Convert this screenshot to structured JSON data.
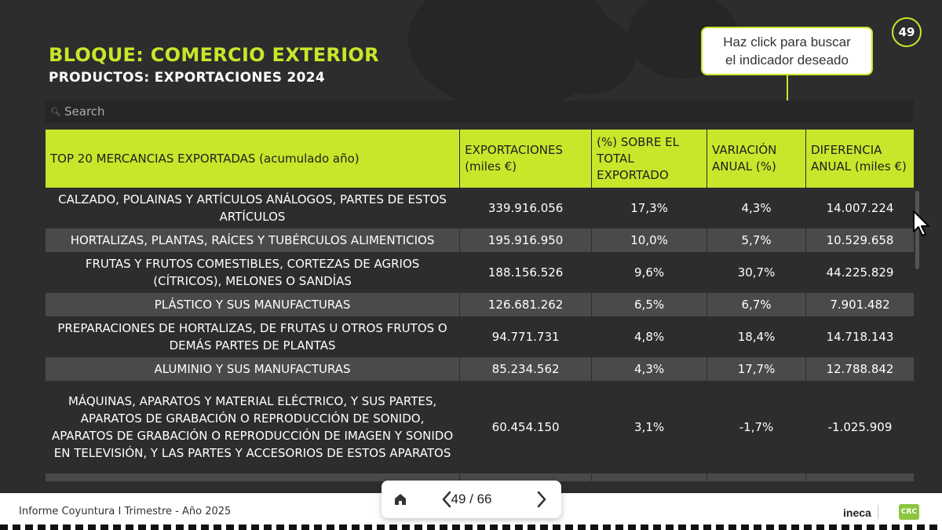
{
  "page_number": "49",
  "title": "BLOQUE: COMERCIO EXTERIOR",
  "subtitle": "PRODUCTOS: EXPORTACIONES 2024",
  "tooltip": {
    "line1": "Haz click para buscar",
    "line2": "el indicador deseado"
  },
  "search": {
    "placeholder": "Search",
    "icon": "search-icon"
  },
  "colors": {
    "accent": "#c9e62a",
    "background": "#2d2d2d",
    "row_alt": "#4a4a4a"
  },
  "table": {
    "headers": [
      "TOP 20 MERCANCIAS EXPORTADAS (acumulado año)",
      "EXPORTACIONES (miles €)",
      "(%) SOBRE EL TOTAL EXPORTADO",
      "VARIACIÓN ANUAL (%)",
      "DIFERENCIA ANUAL (miles €)"
    ],
    "rows": [
      {
        "name": "CALZADO, POLAINAS Y ARTÍCULOS ANÁLOGOS, PARTES DE ESTOS ARTÍCULOS",
        "exports": "339.916.056",
        "share": "17,3%",
        "variation": "4,3%",
        "difference": "14.007.224"
      },
      {
        "name": "HORTALIZAS, PLANTAS, RAÍCES Y TUBÉRCULOS ALIMENTICIOS",
        "exports": "195.916.950",
        "share": "10,0%",
        "variation": "5,7%",
        "difference": "10.529.658"
      },
      {
        "name": "FRUTAS Y FRUTOS COMESTIBLES, CORTEZAS DE AGRIOS (CÍTRICOS), MELONES O SANDÍAS",
        "exports": "188.156.526",
        "share": "9,6%",
        "variation": "30,7%",
        "difference": "44.225.829"
      },
      {
        "name": "PLÁSTICO Y SUS MANUFACTURAS",
        "exports": "126.681.262",
        "share": "6,5%",
        "variation": "6,7%",
        "difference": "7.901.482"
      },
      {
        "name": "PREPARACIONES DE HORTALIZAS, DE FRUTAS U OTROS FRUTOS O DEMÁS PARTES DE PLANTAS",
        "exports": "94.771.731",
        "share": "4,8%",
        "variation": "18,4%",
        "difference": "14.718.143"
      },
      {
        "name": "ALUMINIO Y SUS MANUFACTURAS",
        "exports": "85.234.562",
        "share": "4,3%",
        "variation": "17,7%",
        "difference": "12.788.842"
      },
      {
        "name": "MÁQUINAS, APARATOS Y MATERIAL ELÉCTRICO, Y SUS PARTES, APARATOS DE GRABACIÓN O REPRODUCCIÓN DE SONIDO, APARATOS DE GRABACIÓN O REPRODUCCIÓN DE IMAGEN Y SONIDO EN TELEVISIÓN, Y LAS PARTES Y ACCESORIOS DE ESTOS APARATOS",
        "exports": "60.454.150",
        "share": "3,1%",
        "variation": "-1,7%",
        "difference": "-1.025.909"
      }
    ]
  },
  "footer": {
    "text": "Informe Coyuntura I Trimestre - Año 2025",
    "logo_ineca": "ineca",
    "logo_crc": "CRC"
  },
  "nav": {
    "page_indicator": "49 / 66",
    "home_icon": "home-icon",
    "prev_icon": "chevron-left-icon",
    "next_icon": "chevron-right-icon"
  }
}
